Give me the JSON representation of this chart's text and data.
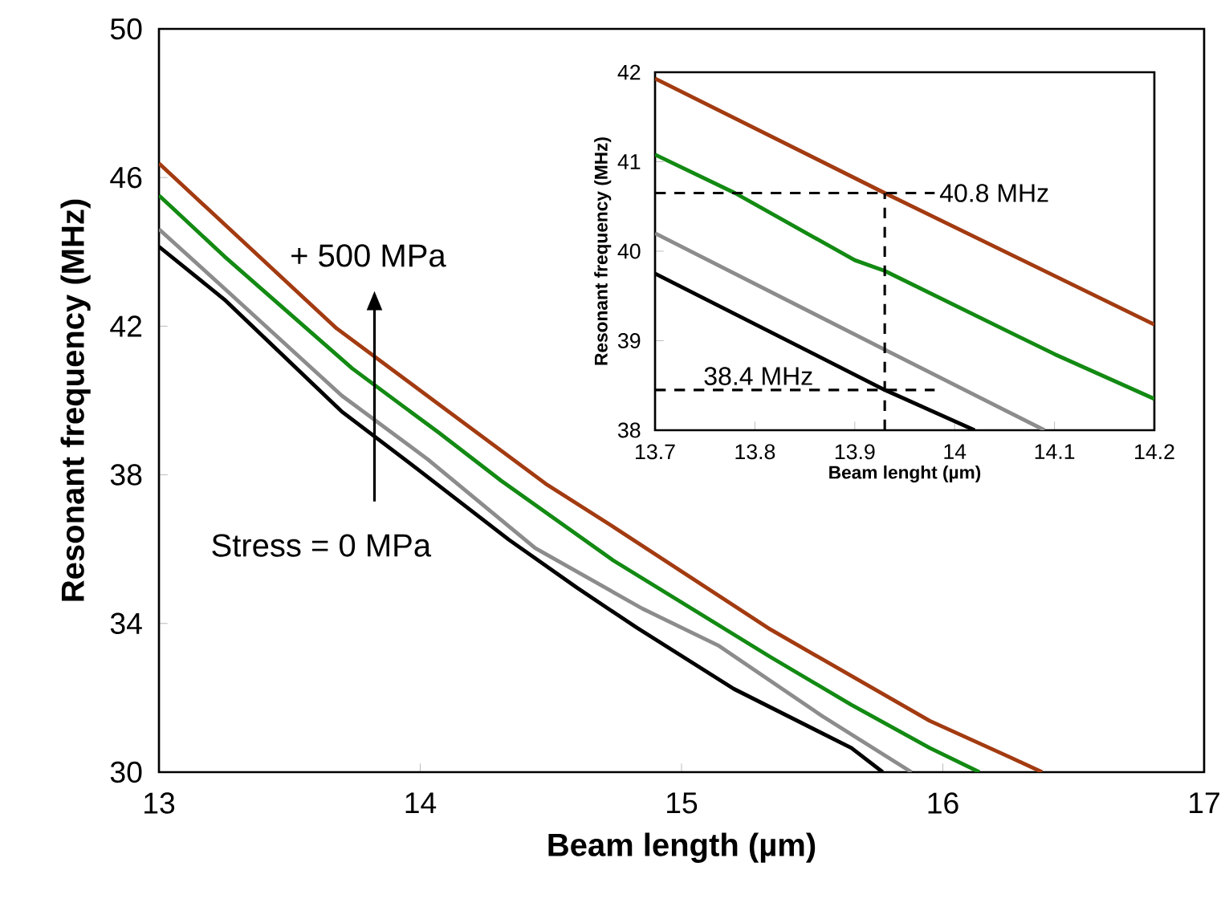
{
  "chart_data": [
    {
      "type": "line",
      "xlabel": "Beam length (µm)",
      "ylabel": "Resonant frequency (MHz)",
      "xlim": [
        13,
        17
      ],
      "ylim": [
        30,
        50
      ],
      "xticks": [
        13,
        14,
        15,
        16,
        17
      ],
      "yticks": [
        30,
        34,
        38,
        42,
        46,
        50
      ],
      "grid": false,
      "marker": "none",
      "line_style": "solid",
      "series": [
        {
          "color": "#000000",
          "x": [
            13,
            13.25,
            13.7,
            13.99,
            14.34,
            14.6,
            14.83,
            15.2,
            15.65,
            15.77
          ],
          "values": [
            44.14,
            42.72,
            39.7,
            38.15,
            36.25,
            34.96,
            33.88,
            32.24,
            30.65,
            30
          ]
        },
        {
          "color": "#8c8c8c",
          "x": [
            13,
            13.25,
            13.7,
            14.03,
            14.44,
            14.85,
            15.14,
            15.54,
            15.88
          ],
          "values": [
            44.61,
            43.02,
            40.13,
            38.41,
            36.03,
            34.4,
            33.41,
            31.5,
            30
          ]
        },
        {
          "color": "#138a13",
          "x": [
            13,
            13.25,
            13.74,
            14.07,
            14.31,
            14.74,
            15.34,
            15.65,
            15.95,
            16.14
          ],
          "values": [
            45.52,
            43.88,
            40.86,
            39.14,
            37.84,
            35.69,
            33.1,
            31.81,
            30.65,
            30
          ]
        },
        {
          "color": "#a33b11",
          "x": [
            13,
            13.68,
            14.48,
            14.73,
            15.34,
            15.95,
            16.26,
            16.38
          ],
          "values": [
            46.38,
            41.94,
            37.76,
            36.64,
            33.84,
            31.38,
            30.39,
            30
          ]
        }
      ],
      "annotations": [
        "+ 500 MPa",
        "Stress = 0 MPa"
      ]
    },
    {
      "type": "line",
      "xlabel": "Beam lenght (µm)",
      "ylabel": "Resonant frequency (MHz)",
      "xlim": [
        13.7,
        14.2
      ],
      "ylim": [
        38,
        42
      ],
      "xticks": [
        13.7,
        13.8,
        13.9,
        14,
        14.1,
        14.2
      ],
      "yticks": [
        38,
        39,
        40,
        41,
        42
      ],
      "grid": false,
      "marker": "none",
      "line_style": "solid",
      "series": [
        {
          "color": "#000000",
          "x": [
            13.7,
            13.93,
            14.02
          ],
          "values": [
            39.75,
            38.45,
            38.0
          ]
        },
        {
          "color": "#8c8c8c",
          "x": [
            13.7,
            13.93,
            14.09
          ],
          "values": [
            40.2,
            38.9,
            38.0
          ]
        },
        {
          "color": "#138a13",
          "x": [
            13.7,
            13.78,
            13.9,
            13.93,
            14.1,
            14.2
          ],
          "values": [
            41.08,
            40.65,
            39.9,
            39.78,
            38.85,
            38.35
          ]
        },
        {
          "color": "#a33b11",
          "x": [
            13.7,
            13.93,
            14.2
          ],
          "values": [
            41.93,
            40.65,
            39.18
          ]
        }
      ],
      "ref_lines": [
        {
          "axis": "y",
          "value": 40.65,
          "label": "40.8 MHz",
          "line_style": "dashed"
        },
        {
          "axis": "y",
          "value": 38.45,
          "label": "38.4 MHz",
          "line_style": "dashed"
        },
        {
          "axis": "x",
          "value": 13.93,
          "line_style": "dashed"
        }
      ]
    }
  ]
}
